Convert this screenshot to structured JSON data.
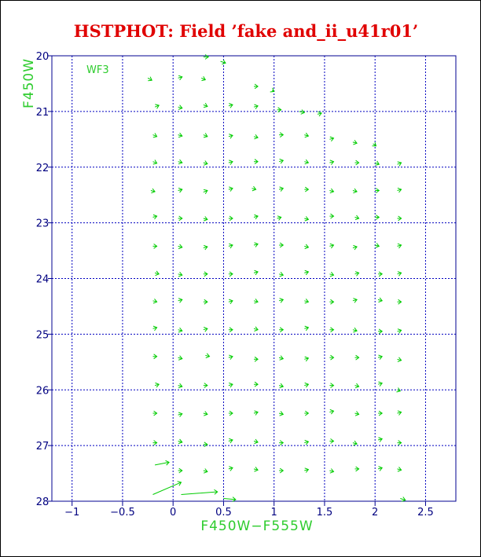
{
  "chart_data": {
    "type": "scatter",
    "title": "HSTPHOT: Field ’fake and_ii_u41r01’",
    "xlabel": "F450W−F555W",
    "ylabel": "F450W",
    "annotation": "WF3",
    "xlim": [
      -1.2,
      2.8
    ],
    "ylim": [
      28,
      20
    ],
    "y_inverted": true,
    "grid": true,
    "xticks": [
      "−1",
      "−0.5",
      "0",
      "0.5",
      "1",
      "1.5",
      "2",
      "2.5"
    ],
    "xtick_values": [
      -1,
      -0.5,
      0,
      0.5,
      1,
      1.5,
      2,
      2.5
    ],
    "yticks": [
      "20",
      "21",
      "22",
      "23",
      "24",
      "25",
      "26",
      "27",
      "28"
    ],
    "ytick_values": [
      20,
      21,
      22,
      23,
      24,
      25,
      26,
      27,
      28
    ],
    "line_color": "#00cc00",
    "grid_color": "#0000c0",
    "title_color": "#e00000",
    "label_color": "#2ecc2e",
    "vectors": [
      {
        "x": 0.3,
        "y": 20.02,
        "dx": 0.05,
        "dy": 0.0
      },
      {
        "x": 0.47,
        "y": 20.1,
        "dx": 0.05,
        "dy": 0.03
      },
      {
        "x": -0.25,
        "y": 20.4,
        "dx": 0.04,
        "dy": 0.04
      },
      {
        "x": 0.05,
        "y": 20.4,
        "dx": 0.04,
        "dy": -0.02
      },
      {
        "x": 0.28,
        "y": 20.4,
        "dx": 0.04,
        "dy": 0.03
      },
      {
        "x": 0.8,
        "y": 20.55,
        "dx": 0.04,
        "dy": 0.0
      },
      {
        "x": 0.98,
        "y": 20.62,
        "dx": 0.02,
        "dy": 0.02
      },
      {
        "x": -0.18,
        "y": 20.92,
        "dx": 0.04,
        "dy": -0.03
      },
      {
        "x": 0.05,
        "y": 20.92,
        "dx": 0.04,
        "dy": 0.02
      },
      {
        "x": 0.3,
        "y": 20.88,
        "dx": 0.04,
        "dy": 0.03
      },
      {
        "x": 0.55,
        "y": 20.9,
        "dx": 0.04,
        "dy": -0.02
      },
      {
        "x": 0.8,
        "y": 20.92,
        "dx": 0.04,
        "dy": -0.02
      },
      {
        "x": 1.03,
        "y": 20.97,
        "dx": 0.04,
        "dy": 0.0
      },
      {
        "x": 1.25,
        "y": 21.0,
        "dx": 0.05,
        "dy": 0.02
      },
      {
        "x": 1.43,
        "y": 21.05,
        "dx": 0.04,
        "dy": -0.02
      },
      {
        "x": -0.2,
        "y": 21.42,
        "dx": 0.04,
        "dy": 0.03
      },
      {
        "x": 0.05,
        "y": 21.42,
        "dx": 0.04,
        "dy": 0.02
      },
      {
        "x": 0.3,
        "y": 21.42,
        "dx": 0.04,
        "dy": 0.03
      },
      {
        "x": 0.55,
        "y": 21.45,
        "dx": 0.04,
        "dy": -0.02
      },
      {
        "x": 0.8,
        "y": 21.45,
        "dx": 0.04,
        "dy": 0.02
      },
      {
        "x": 1.05,
        "y": 21.42,
        "dx": 0.04,
        "dy": 0.0
      },
      {
        "x": 1.3,
        "y": 21.42,
        "dx": 0.04,
        "dy": 0.02
      },
      {
        "x": 1.55,
        "y": 21.5,
        "dx": 0.04,
        "dy": -0.02
      },
      {
        "x": 1.78,
        "y": 21.55,
        "dx": 0.04,
        "dy": 0.02
      },
      {
        "x": 1.98,
        "y": 21.58,
        "dx": 0.03,
        "dy": 0.04
      },
      {
        "x": -0.2,
        "y": 21.9,
        "dx": 0.04,
        "dy": 0.03
      },
      {
        "x": 0.05,
        "y": 21.9,
        "dx": 0.04,
        "dy": 0.02
      },
      {
        "x": 0.3,
        "y": 21.92,
        "dx": 0.04,
        "dy": 0.02
      },
      {
        "x": 0.55,
        "y": 21.92,
        "dx": 0.04,
        "dy": -0.02
      },
      {
        "x": 0.8,
        "y": 21.9,
        "dx": 0.04,
        "dy": 0.0
      },
      {
        "x": 1.05,
        "y": 21.9,
        "dx": 0.04,
        "dy": -0.02
      },
      {
        "x": 1.3,
        "y": 21.9,
        "dx": 0.04,
        "dy": 0.02
      },
      {
        "x": 1.55,
        "y": 21.92,
        "dx": 0.04,
        "dy": -0.02
      },
      {
        "x": 1.8,
        "y": 21.92,
        "dx": 0.04,
        "dy": 0.0
      },
      {
        "x": 2.0,
        "y": 21.92,
        "dx": 0.04,
        "dy": 0.03
      },
      {
        "x": 2.22,
        "y": 21.95,
        "dx": 0.04,
        "dy": -0.03
      },
      {
        "x": -0.22,
        "y": 22.42,
        "dx": 0.04,
        "dy": 0.02
      },
      {
        "x": 0.05,
        "y": 22.42,
        "dx": 0.04,
        "dy": -0.02
      },
      {
        "x": 0.3,
        "y": 22.45,
        "dx": 0.04,
        "dy": -0.03
      },
      {
        "x": 0.55,
        "y": 22.4,
        "dx": 0.04,
        "dy": -0.02
      },
      {
        "x": 0.78,
        "y": 22.38,
        "dx": 0.04,
        "dy": 0.02
      },
      {
        "x": 1.05,
        "y": 22.4,
        "dx": 0.04,
        "dy": -0.02
      },
      {
        "x": 1.3,
        "y": 22.4,
        "dx": 0.04,
        "dy": 0.0
      },
      {
        "x": 1.55,
        "y": 22.42,
        "dx": 0.04,
        "dy": 0.02
      },
      {
        "x": 1.78,
        "y": 22.42,
        "dx": 0.04,
        "dy": 0.02
      },
      {
        "x": 2.0,
        "y": 22.42,
        "dx": 0.04,
        "dy": 0.0
      },
      {
        "x": 2.22,
        "y": 22.42,
        "dx": 0.04,
        "dy": -0.02
      },
      {
        "x": -0.2,
        "y": 22.9,
        "dx": 0.04,
        "dy": -0.02
      },
      {
        "x": 0.05,
        "y": 22.92,
        "dx": 0.04,
        "dy": 0.0
      },
      {
        "x": 0.3,
        "y": 22.92,
        "dx": 0.04,
        "dy": 0.02
      },
      {
        "x": 0.55,
        "y": 22.92,
        "dx": 0.04,
        "dy": 0.0
      },
      {
        "x": 0.8,
        "y": 22.9,
        "dx": 0.04,
        "dy": -0.02
      },
      {
        "x": 1.03,
        "y": 22.92,
        "dx": 0.04,
        "dy": -0.02
      },
      {
        "x": 1.3,
        "y": 22.92,
        "dx": 0.04,
        "dy": 0.02
      },
      {
        "x": 1.55,
        "y": 22.88,
        "dx": 0.04,
        "dy": 0.0
      },
      {
        "x": 1.8,
        "y": 22.9,
        "dx": 0.04,
        "dy": 0.02
      },
      {
        "x": 2.0,
        "y": 22.9,
        "dx": 0.04,
        "dy": 0.0
      },
      {
        "x": 2.22,
        "y": 22.92,
        "dx": 0.04,
        "dy": 0.0
      },
      {
        "x": -0.2,
        "y": 23.42,
        "dx": 0.04,
        "dy": 0.0
      },
      {
        "x": 0.05,
        "y": 23.42,
        "dx": 0.04,
        "dy": 0.02
      },
      {
        "x": 0.3,
        "y": 23.45,
        "dx": 0.04,
        "dy": -0.02
      },
      {
        "x": 0.55,
        "y": 23.42,
        "dx": 0.04,
        "dy": -0.02
      },
      {
        "x": 0.8,
        "y": 23.4,
        "dx": 0.04,
        "dy": -0.02
      },
      {
        "x": 1.05,
        "y": 23.4,
        "dx": 0.04,
        "dy": 0.0
      },
      {
        "x": 1.3,
        "y": 23.42,
        "dx": 0.04,
        "dy": 0.02
      },
      {
        "x": 1.55,
        "y": 23.42,
        "dx": 0.04,
        "dy": -0.02
      },
      {
        "x": 1.78,
        "y": 23.45,
        "dx": 0.04,
        "dy": -0.02
      },
      {
        "x": 2.0,
        "y": 23.4,
        "dx": 0.04,
        "dy": 0.02
      },
      {
        "x": 2.22,
        "y": 23.42,
        "dx": 0.04,
        "dy": -0.02
      },
      {
        "x": -0.18,
        "y": 23.9,
        "dx": 0.04,
        "dy": 0.02
      },
      {
        "x": 0.05,
        "y": 23.92,
        "dx": 0.04,
        "dy": 0.02
      },
      {
        "x": 0.3,
        "y": 23.92,
        "dx": 0.04,
        "dy": 0.0
      },
      {
        "x": 0.55,
        "y": 23.92,
        "dx": 0.04,
        "dy": 0.0
      },
      {
        "x": 0.8,
        "y": 23.9,
        "dx": 0.04,
        "dy": -0.02
      },
      {
        "x": 1.05,
        "y": 23.92,
        "dx": 0.04,
        "dy": 0.02
      },
      {
        "x": 1.3,
        "y": 23.9,
        "dx": 0.04,
        "dy": -0.02
      },
      {
        "x": 1.55,
        "y": 23.92,
        "dx": 0.04,
        "dy": 0.02
      },
      {
        "x": 1.8,
        "y": 23.92,
        "dx": 0.04,
        "dy": -0.02
      },
      {
        "x": 2.03,
        "y": 23.92,
        "dx": 0.04,
        "dy": 0.0
      },
      {
        "x": 2.22,
        "y": 23.92,
        "dx": 0.04,
        "dy": -0.02
      },
      {
        "x": -0.2,
        "y": 24.4,
        "dx": 0.04,
        "dy": 0.02
      },
      {
        "x": 0.05,
        "y": 24.4,
        "dx": 0.04,
        "dy": -0.02
      },
      {
        "x": 0.3,
        "y": 24.42,
        "dx": 0.04,
        "dy": 0.0
      },
      {
        "x": 0.55,
        "y": 24.42,
        "dx": 0.04,
        "dy": -0.02
      },
      {
        "x": 0.8,
        "y": 24.4,
        "dx": 0.04,
        "dy": 0.02
      },
      {
        "x": 1.05,
        "y": 24.4,
        "dx": 0.04,
        "dy": -0.02
      },
      {
        "x": 1.3,
        "y": 24.4,
        "dx": 0.04,
        "dy": 0.02
      },
      {
        "x": 1.55,
        "y": 24.42,
        "dx": 0.04,
        "dy": 0.0
      },
      {
        "x": 1.78,
        "y": 24.4,
        "dx": 0.04,
        "dy": -0.02
      },
      {
        "x": 2.03,
        "y": 24.38,
        "dx": 0.04,
        "dy": 0.02
      },
      {
        "x": 2.22,
        "y": 24.42,
        "dx": 0.04,
        "dy": 0.0
      },
      {
        "x": -0.2,
        "y": 24.9,
        "dx": 0.04,
        "dy": -0.02
      },
      {
        "x": 0.05,
        "y": 24.92,
        "dx": 0.04,
        "dy": 0.02
      },
      {
        "x": 0.3,
        "y": 24.92,
        "dx": 0.04,
        "dy": -0.02
      },
      {
        "x": 0.55,
        "y": 24.92,
        "dx": 0.04,
        "dy": 0.0
      },
      {
        "x": 0.8,
        "y": 24.9,
        "dx": 0.04,
        "dy": 0.02
      },
      {
        "x": 1.05,
        "y": 24.92,
        "dx": 0.04,
        "dy": 0.0
      },
      {
        "x": 1.3,
        "y": 24.9,
        "dx": 0.04,
        "dy": -0.02
      },
      {
        "x": 1.55,
        "y": 24.92,
        "dx": 0.04,
        "dy": 0.0
      },
      {
        "x": 1.78,
        "y": 24.92,
        "dx": 0.04,
        "dy": 0.02
      },
      {
        "x": 2.03,
        "y": 24.95,
        "dx": 0.04,
        "dy": 0.0
      },
      {
        "x": 2.22,
        "y": 24.95,
        "dx": 0.04,
        "dy": -0.02
      },
      {
        "x": -0.2,
        "y": 25.4,
        "dx": 0.04,
        "dy": 0.0
      },
      {
        "x": 0.05,
        "y": 25.42,
        "dx": 0.04,
        "dy": 0.02
      },
      {
        "x": 0.32,
        "y": 25.38,
        "dx": 0.04,
        "dy": 0.02
      },
      {
        "x": 0.55,
        "y": 25.42,
        "dx": 0.04,
        "dy": -0.02
      },
      {
        "x": 0.8,
        "y": 25.45,
        "dx": 0.04,
        "dy": 0.0
      },
      {
        "x": 1.05,
        "y": 25.42,
        "dx": 0.04,
        "dy": 0.02
      },
      {
        "x": 1.3,
        "y": 25.45,
        "dx": 0.04,
        "dy": -0.02
      },
      {
        "x": 1.55,
        "y": 25.42,
        "dx": 0.04,
        "dy": 0.0
      },
      {
        "x": 1.8,
        "y": 25.42,
        "dx": 0.04,
        "dy": 0.0
      },
      {
        "x": 2.03,
        "y": 25.42,
        "dx": 0.04,
        "dy": -0.02
      },
      {
        "x": 2.22,
        "y": 25.45,
        "dx": 0.04,
        "dy": 0.02
      },
      {
        "x": -0.18,
        "y": 25.92,
        "dx": 0.04,
        "dy": -0.02
      },
      {
        "x": 0.05,
        "y": 25.92,
        "dx": 0.04,
        "dy": 0.02
      },
      {
        "x": 0.3,
        "y": 25.92,
        "dx": 0.04,
        "dy": 0.0
      },
      {
        "x": 0.55,
        "y": 25.92,
        "dx": 0.04,
        "dy": -0.02
      },
      {
        "x": 0.8,
        "y": 25.9,
        "dx": 0.04,
        "dy": 0.0
      },
      {
        "x": 1.05,
        "y": 25.92,
        "dx": 0.04,
        "dy": 0.02
      },
      {
        "x": 1.3,
        "y": 25.92,
        "dx": 0.04,
        "dy": -0.02
      },
      {
        "x": 1.55,
        "y": 25.92,
        "dx": 0.04,
        "dy": 0.0
      },
      {
        "x": 1.8,
        "y": 25.92,
        "dx": 0.04,
        "dy": 0.02
      },
      {
        "x": 2.03,
        "y": 25.9,
        "dx": 0.04,
        "dy": -0.02
      },
      {
        "x": 2.22,
        "y": 26.0,
        "dx": 0.03,
        "dy": 0.02
      },
      {
        "x": -0.2,
        "y": 26.42,
        "dx": 0.04,
        "dy": 0.0
      },
      {
        "x": 0.05,
        "y": 26.45,
        "dx": 0.04,
        "dy": -0.02
      },
      {
        "x": 0.3,
        "y": 26.42,
        "dx": 0.04,
        "dy": 0.02
      },
      {
        "x": 0.55,
        "y": 26.42,
        "dx": 0.04,
        "dy": 0.0
      },
      {
        "x": 0.8,
        "y": 26.42,
        "dx": 0.04,
        "dy": -0.02
      },
      {
        "x": 1.05,
        "y": 26.42,
        "dx": 0.04,
        "dy": 0.02
      },
      {
        "x": 1.3,
        "y": 26.42,
        "dx": 0.04,
        "dy": 0.0
      },
      {
        "x": 1.55,
        "y": 26.4,
        "dx": 0.04,
        "dy": -0.02
      },
      {
        "x": 1.8,
        "y": 26.42,
        "dx": 0.04,
        "dy": 0.02
      },
      {
        "x": 2.03,
        "y": 26.42,
        "dx": 0.04,
        "dy": 0.0
      },
      {
        "x": 2.22,
        "y": 26.42,
        "dx": 0.04,
        "dy": -0.02
      },
      {
        "x": -0.2,
        "y": 26.95,
        "dx": 0.04,
        "dy": 0.0
      },
      {
        "x": 0.05,
        "y": 26.92,
        "dx": 0.04,
        "dy": 0.02
      },
      {
        "x": 0.3,
        "y": 26.98,
        "dx": 0.04,
        "dy": 0.0
      },
      {
        "x": 0.55,
        "y": 26.92,
        "dx": 0.04,
        "dy": -0.02
      },
      {
        "x": 0.8,
        "y": 26.92,
        "dx": 0.04,
        "dy": 0.02
      },
      {
        "x": 1.05,
        "y": 26.95,
        "dx": 0.04,
        "dy": 0.0
      },
      {
        "x": 1.3,
        "y": 26.95,
        "dx": 0.04,
        "dy": -0.02
      },
      {
        "x": 1.55,
        "y": 26.92,
        "dx": 0.04,
        "dy": 0.0
      },
      {
        "x": 1.78,
        "y": 26.95,
        "dx": 0.04,
        "dy": 0.02
      },
      {
        "x": 2.03,
        "y": 26.9,
        "dx": 0.04,
        "dy": -0.02
      },
      {
        "x": 2.22,
        "y": 26.95,
        "dx": 0.04,
        "dy": 0.0
      },
      {
        "x": -0.18,
        "y": 27.35,
        "dx": 0.14,
        "dy": -0.05
      },
      {
        "x": 0.05,
        "y": 27.45,
        "dx": 0.04,
        "dy": 0.0
      },
      {
        "x": 0.3,
        "y": 27.45,
        "dx": 0.04,
        "dy": 0.02
      },
      {
        "x": 0.55,
        "y": 27.42,
        "dx": 0.04,
        "dy": -0.02
      },
      {
        "x": 0.8,
        "y": 27.42,
        "dx": 0.04,
        "dy": 0.02
      },
      {
        "x": 1.05,
        "y": 27.45,
        "dx": 0.04,
        "dy": 0.0
      },
      {
        "x": 1.3,
        "y": 27.45,
        "dx": 0.04,
        "dy": -0.02
      },
      {
        "x": 1.55,
        "y": 27.45,
        "dx": 0.04,
        "dy": 0.02
      },
      {
        "x": 1.8,
        "y": 27.42,
        "dx": 0.04,
        "dy": 0.0
      },
      {
        "x": 2.03,
        "y": 27.42,
        "dx": 0.04,
        "dy": -0.02
      },
      {
        "x": 2.22,
        "y": 27.42,
        "dx": 0.04,
        "dy": 0.02
      },
      {
        "x": -0.2,
        "y": 27.88,
        "dx": 0.28,
        "dy": -0.22
      },
      {
        "x": 0.08,
        "y": 27.88,
        "dx": 0.36,
        "dy": -0.05
      },
      {
        "x": 0.5,
        "y": 27.95,
        "dx": 0.12,
        "dy": 0.02
      },
      {
        "x": 2.25,
        "y": 27.95,
        "dx": 0.05,
        "dy": 0.03
      }
    ]
  }
}
